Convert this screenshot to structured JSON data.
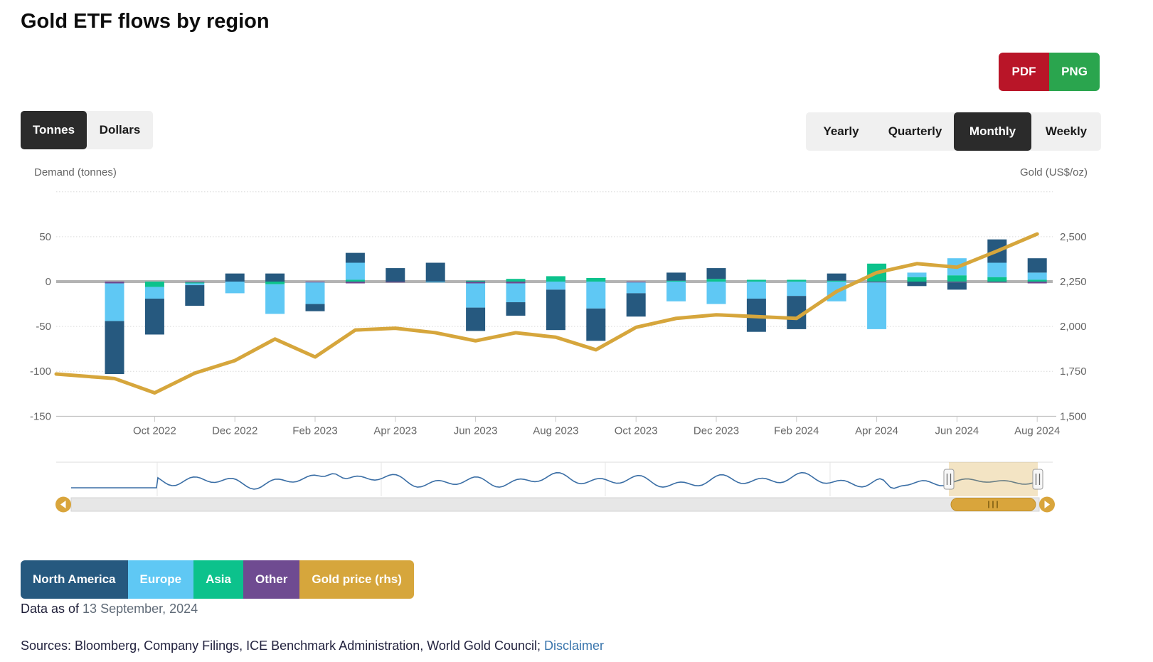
{
  "header": {
    "title": "Gold ETF flows by region",
    "export_buttons": [
      {
        "label": "PDF",
        "color": "#b91528"
      },
      {
        "label": "PNG",
        "color": "#2aa54e"
      }
    ]
  },
  "controls": {
    "unit_toggle": [
      {
        "label": "Tonnes",
        "active": true
      },
      {
        "label": "Dollars",
        "active": false
      }
    ],
    "frequency_toggle": [
      {
        "label": "Yearly",
        "active": false
      },
      {
        "label": "Quarterly",
        "active": false
      },
      {
        "label": "Monthly",
        "active": true
      },
      {
        "label": "Weekly",
        "active": false
      }
    ]
  },
  "chart_data": {
    "type": "bar",
    "subtype": "stacked-column-with-line",
    "title": "Gold ETF flows by region",
    "categories": [
      "Sep 2022",
      "Oct 2022",
      "Nov 2022",
      "Dec 2022",
      "Jan 2023",
      "Feb 2023",
      "Mar 2023",
      "Apr 2023",
      "May 2023",
      "Jun 2023",
      "Jul 2023",
      "Aug 2023",
      "Sep 2023",
      "Oct 2023",
      "Nov 2023",
      "Dec 2023",
      "Jan 2024",
      "Feb 2024",
      "Mar 2024",
      "Apr 2024",
      "May 2024",
      "Jun 2024",
      "Jul 2024",
      "Aug 2024"
    ],
    "x_tick_labels": [
      "Oct 2022",
      "Dec 2022",
      "Feb 2023",
      "Apr 2023",
      "Jun 2023",
      "Aug 2023",
      "Oct 2023",
      "Dec 2023",
      "Feb 2024",
      "Apr 2024",
      "Jun 2024",
      "Aug 2024"
    ],
    "series": [
      {
        "name": "North America",
        "color": "#26597f",
        "type": "column",
        "values": [
          -59,
          -40,
          -23,
          9,
          9,
          -8,
          11,
          15,
          21,
          -26,
          -15,
          -45,
          -36,
          -26,
          9,
          12,
          -37,
          -37,
          8,
          0,
          -5,
          -8,
          26,
          16
        ]
      },
      {
        "name": "Europe",
        "color": "#5fc8f4",
        "type": "column",
        "values": [
          -42,
          -13,
          -2,
          -13,
          -33,
          -24,
          19,
          0,
          -1,
          -27,
          -21,
          -9,
          -30,
          -12,
          -22,
          -25,
          -19,
          -16,
          -22,
          -52,
          5,
          19,
          16,
          8
        ]
      },
      {
        "name": "Asia",
        "color": "#0cc28c",
        "type": "column",
        "values": [
          0,
          -6,
          -1,
          0,
          -3,
          0,
          2,
          0,
          0,
          1,
          3,
          6,
          4,
          0,
          1,
          3,
          2,
          2,
          1,
          20,
          5,
          7,
          5,
          2
        ]
      },
      {
        "name": "Other",
        "color": "#6f4b91",
        "type": "column",
        "values": [
          -2,
          0,
          -1,
          0,
          0,
          -1,
          -2,
          -1,
          0,
          -2,
          -2,
          0,
          0,
          -1,
          0,
          0,
          0,
          0,
          0,
          -1,
          0,
          -1,
          -1,
          -2
        ]
      },
      {
        "name": "Gold price (rhs)",
        "color": "#d6a63c",
        "type": "line",
        "axis": "right",
        "values": [
          1710,
          1630,
          1740,
          1810,
          1930,
          1830,
          1980,
          1990,
          1965,
          1920,
          1965,
          1940,
          1870,
          1995,
          2045,
          2065,
          2055,
          2045,
          2195,
          2300,
          2350,
          2330,
          2420,
          2515
        ]
      }
    ],
    "gold_lead_in": 1735,
    "left_axis": {
      "title": "Demand (tonnes)",
      "tick_labels": [
        "50",
        "0",
        "-50",
        "-100",
        "-150"
      ],
      "tick_values": [
        50,
        0,
        -50,
        -100,
        -150
      ],
      "range": [
        -150,
        100
      ],
      "grid": "dotted"
    },
    "right_axis": {
      "title": "Gold (US$/oz)",
      "tick_labels": [
        "2,500",
        "2,250",
        "2,000",
        "1,750",
        "1,500"
      ],
      "tick_values": [
        2500,
        2250,
        2000,
        1750,
        1500
      ],
      "range": [
        1500,
        2750
      ]
    },
    "legend_position": "bottom-left"
  },
  "legend": {
    "items": [
      {
        "label": "North America",
        "color": "#26597f"
      },
      {
        "label": "Europe",
        "color": "#5fc8f4"
      },
      {
        "label": "Asia",
        "color": "#0cc28c"
      },
      {
        "label": "Other",
        "color": "#6f4b91"
      },
      {
        "label": "Gold price (rhs)",
        "color": "#d6a63c"
      }
    ]
  },
  "footer": {
    "data_as_of_prefix": "Data as of ",
    "data_as_of_date": "13 September, 2024",
    "sources_text": "Sources: Bloomberg, Company Filings, ICE Benchmark Administration, World Gold Council; ",
    "disclaimer_label": "Disclaimer"
  }
}
